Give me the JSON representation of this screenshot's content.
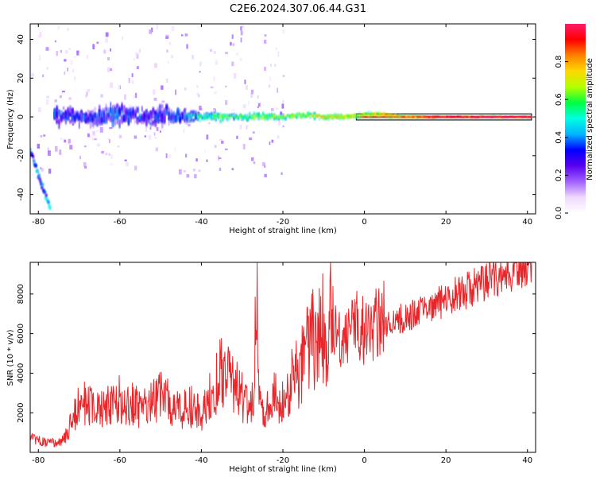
{
  "figure": {
    "title": "C2E6.2024.307.06.44.G31"
  },
  "colors": {
    "snr_line": "#e8262a",
    "reference_band_fill": "#d8e4e1",
    "reference_band_core": "#e0244f",
    "colormap": [
      "#ffffff",
      "#efd9ff",
      "#a060ff",
      "#5a00f0",
      "#0000ff",
      "#00b4ff",
      "#00ffe0",
      "#00ff40",
      "#b4ff00",
      "#ffd800",
      "#ff8000",
      "#ff0000",
      "#ff1a6a"
    ]
  },
  "chart_data": [
    {
      "type": "heatmap",
      "title": "",
      "xlabel": "Height of straight line (km)",
      "ylabel": "Frequency (Hz)",
      "xlim": [
        -82,
        42
      ],
      "ylim": [
        -50,
        48
      ],
      "xticks": [
        -80,
        -60,
        -40,
        -20,
        0,
        20,
        40
      ],
      "yticks": [
        -40,
        -20,
        0,
        20,
        40
      ],
      "grid": false,
      "colorbar": {
        "label": "Normalized spectral amplitude",
        "range": [
          0,
          1
        ],
        "ticks": [
          0.0,
          0.2,
          0.4,
          0.6,
          0.8
        ]
      },
      "main_band": {
        "description": "dominant signal near 0 Hz",
        "x": [
          -76,
          -70,
          -65,
          -60,
          -55,
          -50,
          -45,
          -40,
          -35,
          -30,
          -25,
          -20,
          -15,
          -10,
          -5,
          0,
          5,
          10,
          15,
          20,
          30,
          41
        ],
        "frequency_hz": [
          1,
          0,
          0,
          1,
          0,
          1,
          0,
          0,
          0,
          0,
          0,
          0,
          1,
          0,
          0,
          1,
          1,
          0,
          0,
          0,
          0,
          0
        ],
        "spread_hz": [
          7,
          6,
          6,
          7,
          6,
          7,
          5,
          3,
          3,
          2,
          3,
          2,
          2,
          2,
          2,
          2,
          2,
          1,
          1,
          1,
          1,
          1
        ],
        "amplitude": [
          0.3,
          0.3,
          0.3,
          0.35,
          0.3,
          0.3,
          0.35,
          0.5,
          0.55,
          0.55,
          0.6,
          0.6,
          0.65,
          0.7,
          0.7,
          0.7,
          0.75,
          0.85,
          0.9,
          1.0,
          1.0,
          1.0
        ]
      },
      "diagonal_track": {
        "description": "strong steep feature at low heights",
        "x": [
          -82,
          -80,
          -78,
          -77
        ],
        "frequency_hz": [
          -17,
          -30,
          -42,
          -48
        ],
        "amplitude": 0.3
      },
      "scattered_noise": {
        "description": "weak sparse components",
        "x_range": [
          -82,
          -20
        ],
        "frequency_range": [
          -30,
          48
        ],
        "amplitude": 0.1
      }
    },
    {
      "type": "line",
      "title": "",
      "xlabel": "Height of straight line (km)",
      "ylabel": "SNR (10 * v/v)",
      "xlim": [
        -82,
        42
      ],
      "ylim": [
        0,
        9600
      ],
      "xticks": [
        -80,
        -60,
        -40,
        -20,
        0,
        20,
        40
      ],
      "yticks": [
        2000,
        4000,
        6000,
        8000
      ],
      "grid": false,
      "series": [
        {
          "x": [
            -82,
            -78,
            -74,
            -72,
            -70,
            -65,
            -60,
            -55,
            -50,
            -45,
            -42,
            -40,
            -37,
            -35,
            -32,
            -30,
            -27,
            -26.5,
            -26,
            -25,
            -22,
            -20,
            -18,
            -16,
            -14,
            -12,
            -10,
            -9,
            -8.5,
            -8,
            -6,
            -4,
            -2,
            0,
            5,
            10,
            15,
            20,
            25,
            30,
            35,
            41
          ],
          "y": [
            600,
            400,
            500,
            1200,
            2200,
            1800,
            2300,
            2000,
            2400,
            1800,
            2000,
            1500,
            2800,
            3600,
            3000,
            2400,
            2000,
            8500,
            2500,
            1800,
            2400,
            2100,
            3000,
            3600,
            4400,
            5000,
            5400,
            3500,
            8200,
            6000,
            5500,
            5400,
            5900,
            5500,
            6200,
            6600,
            6900,
            7500,
            7900,
            8400,
            8800,
            9200
          ]
        }
      ]
    }
  ]
}
